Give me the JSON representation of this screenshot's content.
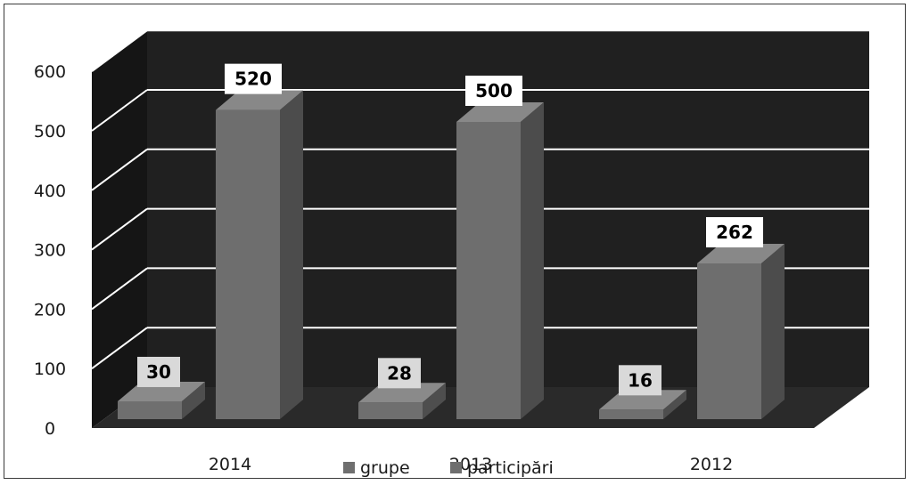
{
  "chart_data": {
    "type": "bar",
    "title": "",
    "xlabel": "",
    "ylabel": "",
    "categories": [
      "2014",
      "2013",
      "2012"
    ],
    "series": [
      {
        "name": "grupe",
        "values": [
          30,
          28,
          16
        ]
      },
      {
        "name": "participări",
        "values": [
          520,
          500,
          262
        ]
      }
    ],
    "ylim": [
      0,
      600
    ],
    "yticks": [
      "0",
      "100",
      "200",
      "300",
      "400",
      "500",
      "600"
    ],
    "grid": true,
    "legend_position": "bottom",
    "colors": {
      "wall": "#202020",
      "floor": "#2a2a2a",
      "gridline": "#ffffff",
      "series_front": [
        "#6f6f6f",
        "#6e6e6e"
      ],
      "series_top": [
        "#8a8a8a",
        "#888888"
      ],
      "series_side": [
        "#4e4e4e",
        "#4c4c4c"
      ],
      "label_box": "#ffffff"
    }
  }
}
